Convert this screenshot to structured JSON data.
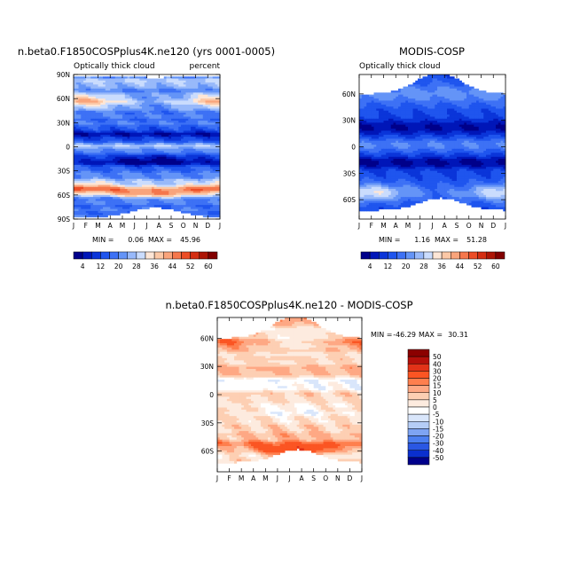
{
  "chart_data": [
    {
      "type": "heatmap",
      "title": "n.beta0.F1850COSPplus4K.ne120 (yrs 0001-0005)",
      "subtitle_left": "Optically thick cloud",
      "subtitle_right": "percent",
      "x_ticks": [
        "J",
        "F",
        "M",
        "A",
        "M",
        "J",
        "J",
        "A",
        "S",
        "O",
        "N",
        "D",
        "J"
      ],
      "y_ticks": [
        "90N",
        "60N",
        "30N",
        "0",
        "30S",
        "60S",
        "90S"
      ],
      "stats": {
        "min_label": "MIN =",
        "min": "0.06",
        "max_label": "MAX =",
        "max": "45.96"
      },
      "colorbar_labels": [
        "4",
        "12",
        "20",
        "28",
        "36",
        "44",
        "52",
        "60"
      ],
      "field": "model",
      "value_range": [
        0.06,
        45.96
      ]
    },
    {
      "type": "heatmap",
      "title": "MODIS-COSP",
      "subtitle_left": "Optically thick cloud",
      "x_ticks": [
        "J",
        "F",
        "M",
        "A",
        "M",
        "J",
        "J",
        "A",
        "S",
        "O",
        "N",
        "D",
        "J"
      ],
      "y_ticks": [
        "60N",
        "30N",
        "0",
        "30S",
        "60S"
      ],
      "stats": {
        "min_label": "MIN =",
        "min": "1.16",
        "max_label": "MAX =",
        "max": "51.28"
      },
      "colorbar_labels": [
        "4",
        "12",
        "20",
        "28",
        "36",
        "44",
        "52",
        "60"
      ],
      "field": "obs",
      "value_range": [
        1.16,
        51.28
      ]
    },
    {
      "type": "heatmap",
      "title": "n.beta0.F1850COSPplus4K.ne120 - MODIS-COSP",
      "x_ticks": [
        "J",
        "F",
        "M",
        "A",
        "M",
        "J",
        "J",
        "A",
        "S",
        "O",
        "N",
        "D",
        "J"
      ],
      "y_ticks": [
        "60N",
        "30N",
        "0",
        "30S",
        "60S"
      ],
      "stats": {
        "min_label": "MIN =",
        "min": "-46.29",
        "max_label": "MAX =",
        "max": "30.31"
      },
      "colorbar_labels": [
        "50",
        "40",
        "30",
        "20",
        "15",
        "10",
        "5",
        "0",
        "-5",
        "-10",
        "-15",
        "-20",
        "-30",
        "-40",
        "-50"
      ],
      "field": "diff",
      "value_range": [
        -46.29,
        30.31
      ]
    }
  ],
  "colors": {
    "seq": [
      "#00008a",
      "#0016b8",
      "#0a35d9",
      "#1f55ee",
      "#3d71f5",
      "#6494f7",
      "#98b9fa",
      "#cadcfd",
      "#fde6d6",
      "#fcc8a6",
      "#f9a47b",
      "#f5774c",
      "#ec4d26",
      "#d42e12",
      "#ad1506",
      "#820000"
    ],
    "div": [
      "#8b0000",
      "#b40f0a",
      "#e23218",
      "#fb5523",
      "#fe7f4e",
      "#fea884",
      "#fdcfb3",
      "#fdebdf",
      "#ffffff",
      "#d9e6fb",
      "#b5cdf6",
      "#7ea4f3",
      "#4c7ff0",
      "#2a57e3",
      "#0a2fcf",
      "#00008b"
    ]
  }
}
